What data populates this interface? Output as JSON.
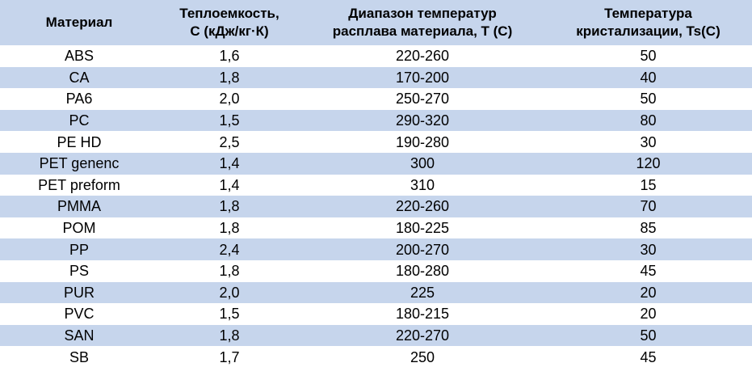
{
  "table": {
    "headers": [
      {
        "lines": [
          "Материал"
        ]
      },
      {
        "lines": [
          "Теплоемкость,",
          "C (кДж/кг·К)"
        ]
      },
      {
        "lines": [
          "Диапазон температур",
          "расплава материала, T (C)"
        ]
      },
      {
        "lines": [
          "Температура",
          "кристализации, Ts(C)"
        ]
      }
    ],
    "rows": [
      [
        "ABS",
        "1,6",
        "220-260",
        "50"
      ],
      [
        "CA",
        "1,8",
        "170-200",
        "40"
      ],
      [
        "PA6",
        "2,0",
        "250-270",
        "50"
      ],
      [
        "PC",
        "1,5",
        "290-320",
        "80"
      ],
      [
        "PE HD",
        "2,5",
        "190-280",
        "30"
      ],
      [
        "PET genenc",
        "1,4",
        "300",
        "120"
      ],
      [
        "PET preform",
        "1,4",
        "310",
        "15"
      ],
      [
        "PMMA",
        "1,8",
        "220-260",
        "70"
      ],
      [
        "POM",
        "1,8",
        "180-225",
        "85"
      ],
      [
        "PP",
        "2,4",
        "200-270",
        "30"
      ],
      [
        "PS",
        "1,8",
        "180-280",
        "45"
      ],
      [
        "PUR",
        "2,0",
        "225",
        "20"
      ],
      [
        "PVC",
        "1,5",
        "180-215",
        "20"
      ],
      [
        "SAN",
        "1,8",
        "220-270",
        "50"
      ],
      [
        "SB",
        "1,7",
        "250",
        "45"
      ]
    ]
  },
  "colors": {
    "band": "#c6d5ec",
    "white": "#ffffff",
    "text": "#000000"
  }
}
